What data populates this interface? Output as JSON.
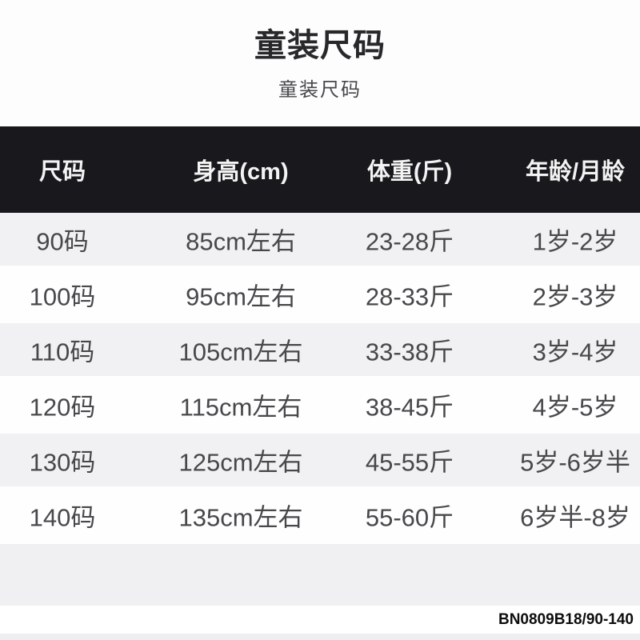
{
  "page": {
    "title": "童装尺码",
    "subtitle": "童装尺码",
    "footer_code": "BN0809B18/90-140"
  },
  "table": {
    "headers": [
      "尺码",
      "身高(cm)",
      "体重(斤)",
      "年龄/月龄"
    ],
    "rows": [
      [
        "90码",
        "85cm左右",
        "23-28斤",
        "1岁-2岁"
      ],
      [
        "100码",
        "95cm左右",
        "28-33斤",
        "2岁-3岁"
      ],
      [
        "110码",
        "105cm左右",
        "33-38斤",
        "3岁-4岁"
      ],
      [
        "120码",
        "115cm左右",
        "38-45斤",
        "4岁-5岁"
      ],
      [
        "130码",
        "125cm左右",
        "45-55斤",
        "5岁-6岁半"
      ],
      [
        "140码",
        "135cm左右",
        "55-60斤",
        "6岁半-8岁"
      ]
    ]
  },
  "colors": {
    "header_bg": "#18181d",
    "header_text": "#f3f3f3",
    "row_alt_bg": "#f1f0f2",
    "row_bg": "#fefefe",
    "cell_text": "#48484b",
    "title_text": "#28282b",
    "subtitle_text": "#48484a",
    "footer_text": "#0d0d0d"
  }
}
